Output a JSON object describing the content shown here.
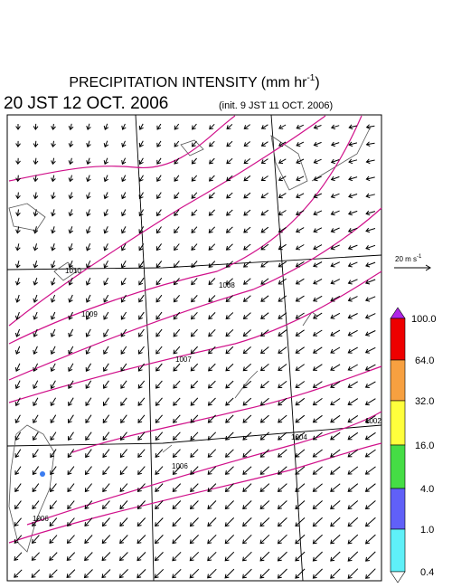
{
  "header": {
    "title": "PRECIPITATION INTENSITY (mm hr",
    "title_sup": "-1",
    "title_end": ")",
    "valid_time": "20 JST 12 OCT. 2006",
    "init_time": "(init. 9 JST 11 OCT. 2006)"
  },
  "reference_vector": {
    "label": "20 m s",
    "label_sup": "-1"
  },
  "colorbar": {
    "labels": [
      "100.0",
      "64.0",
      "32.0",
      "16.0",
      "4.0",
      "1.0",
      "0.4"
    ]
  },
  "isobar_labels": [
    "1010",
    "1009",
    "1008",
    "1007",
    "1006",
    "1004",
    "1002",
    "1006"
  ]
}
